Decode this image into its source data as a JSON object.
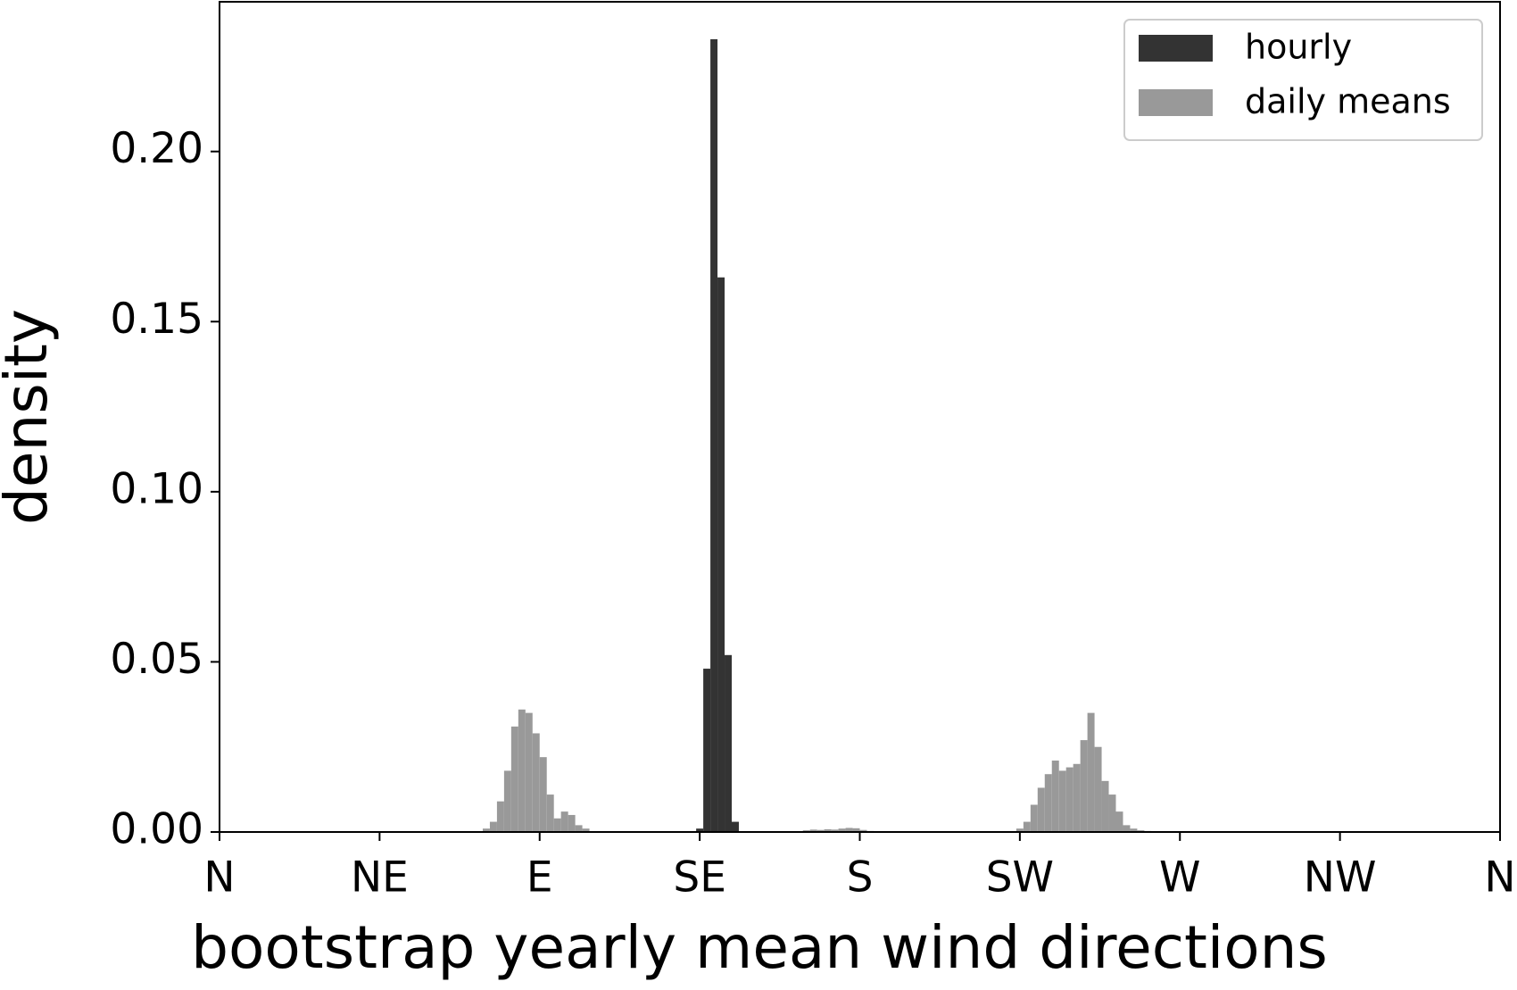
{
  "chart_data": {
    "type": "histogram",
    "xlabel": "bootstrap yearly mean wind directions",
    "ylabel": "density",
    "xlim": [
      0,
      360
    ],
    "ylim": [
      0,
      0.244
    ],
    "xticks": [
      {
        "value": 0,
        "label": "N"
      },
      {
        "value": 45,
        "label": "NE"
      },
      {
        "value": 90,
        "label": "E"
      },
      {
        "value": 135,
        "label": "SE"
      },
      {
        "value": 180,
        "label": "S"
      },
      {
        "value": 225,
        "label": "SW"
      },
      {
        "value": 270,
        "label": "W"
      },
      {
        "value": 315,
        "label": "NW"
      },
      {
        "value": 360,
        "label": "N"
      }
    ],
    "yticks": [
      {
        "value": 0,
        "label": "0.00"
      },
      0.05,
      {
        "value": 0.1,
        "label": "0.10"
      },
      0.15,
      {
        "value": 0.2,
        "label": "0.20"
      }
    ],
    "legend": "upper right",
    "series": [
      {
        "name": "hourly",
        "color": "#333333",
        "bins": [
          134,
          136,
          138,
          140,
          142,
          144,
          146
        ],
        "values": [
          0.001,
          0.048,
          0.233,
          0.163,
          0.052,
          0.003
        ]
      },
      {
        "name": "daily means",
        "color": "#999999",
        "bins": [
          74,
          76,
          78,
          80,
          82,
          84,
          86,
          88,
          90,
          92,
          94,
          96,
          98,
          100,
          102,
          104,
          106,
          108,
          110,
          112,
          114,
          116,
          118,
          120,
          122,
          124,
          126,
          128,
          130,
          132,
          134,
          136,
          138,
          140,
          142,
          144,
          146,
          148,
          150,
          152,
          154,
          156,
          158,
          160,
          162,
          164,
          166,
          168,
          170,
          172,
          174,
          176,
          178,
          180,
          182,
          184,
          186,
          188,
          190,
          192,
          194,
          196,
          198,
          200,
          202,
          204,
          206,
          208,
          210,
          212,
          214,
          216,
          218,
          220,
          222,
          224,
          226,
          228,
          230,
          232,
          234,
          236,
          238,
          240,
          242,
          244,
          246,
          248,
          250,
          252,
          254,
          256,
          258,
          260,
          262
        ],
        "values": [
          0.001,
          0.003,
          0.009,
          0.018,
          0.031,
          0.036,
          0.035,
          0.029,
          0.022,
          0.011,
          0.004,
          0.006,
          0.005,
          0.002,
          0.001,
          0,
          0,
          0,
          0,
          0,
          0,
          0,
          0,
          0,
          0,
          0,
          0,
          0,
          0,
          0,
          0,
          0,
          0,
          0,
          0,
          0,
          0,
          0,
          0,
          0,
          0,
          0,
          0,
          0,
          0,
          0.0005,
          0.0007,
          0.0006,
          0.0008,
          0.0007,
          0.001,
          0.0012,
          0.0011,
          0.0006,
          0.0003,
          0,
          0,
          0,
          0,
          0,
          0,
          0,
          0,
          0,
          0,
          0,
          0,
          0,
          0,
          0,
          0,
          0,
          0,
          0,
          0,
          0.001,
          0.003,
          0.008,
          0.013,
          0.017,
          0.021,
          0.018,
          0.019,
          0.02,
          0.027,
          0.035,
          0.025,
          0.015,
          0.011,
          0.006,
          0.002,
          0.001,
          0.0005,
          0.0003
        ]
      }
    ]
  }
}
